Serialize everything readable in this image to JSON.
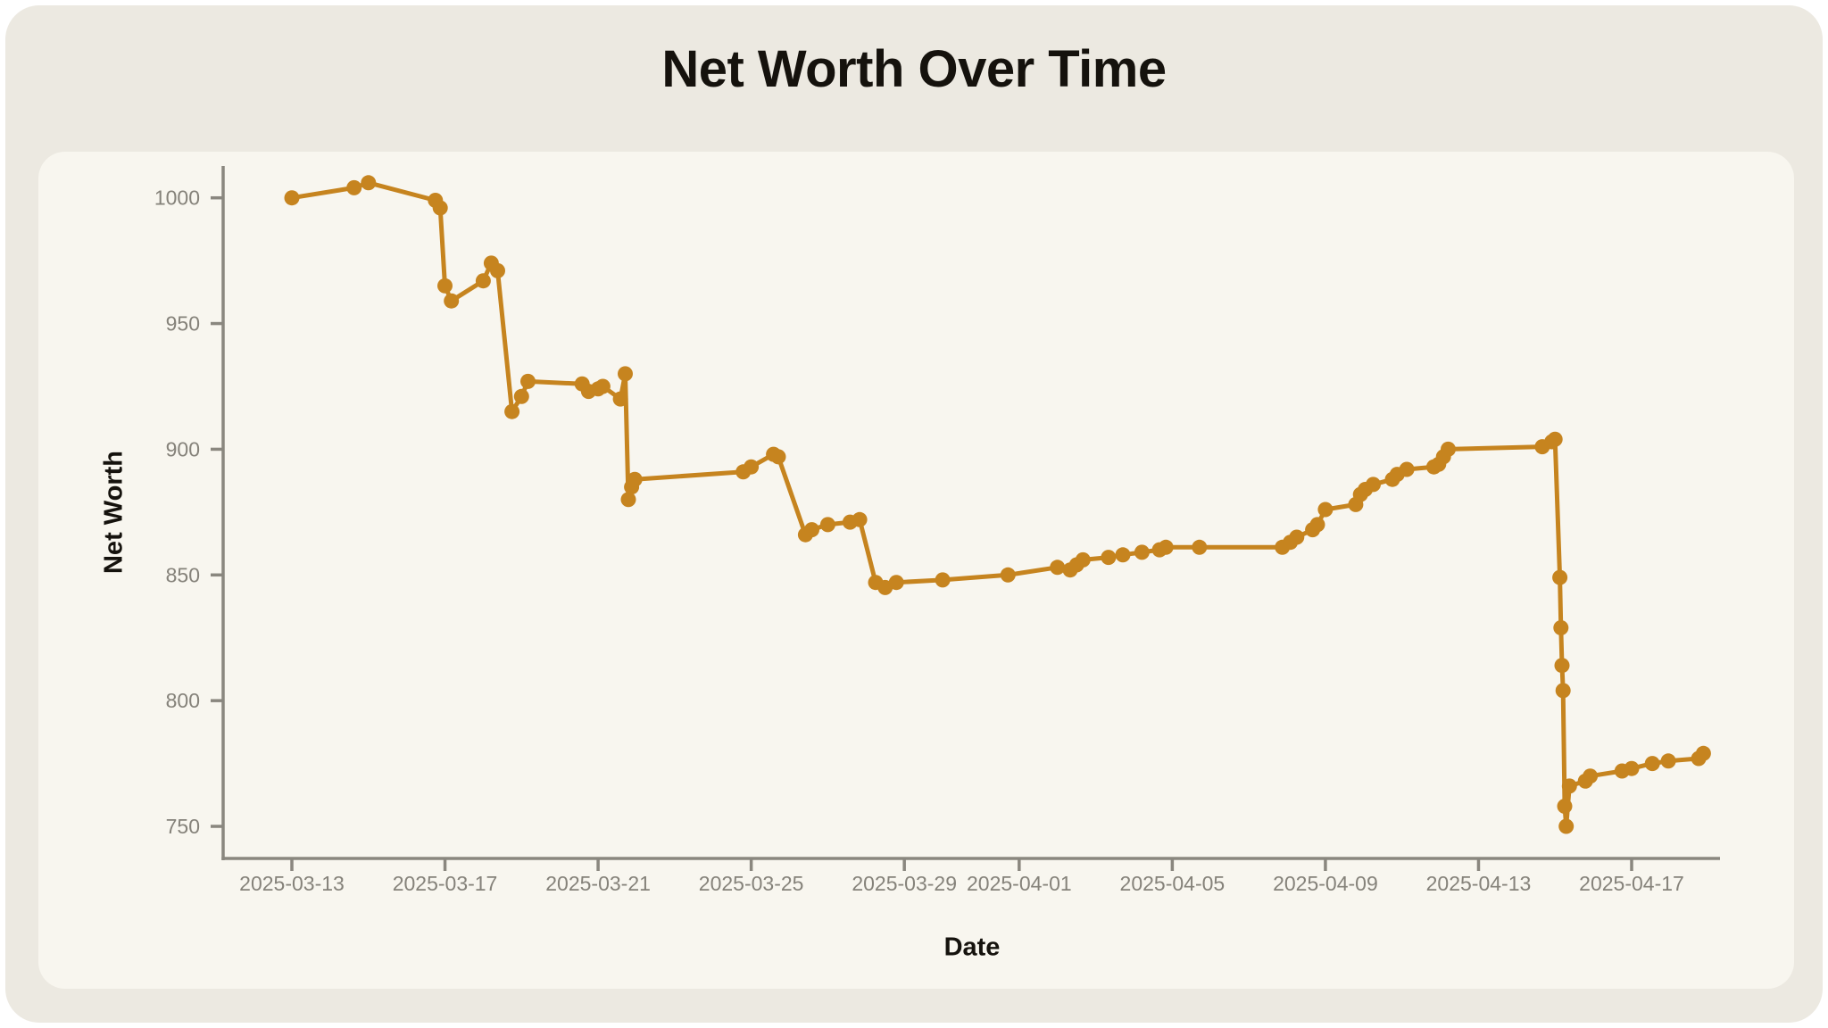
{
  "title": "Net Worth Over Time",
  "colors": {
    "page_bg": "#FFFFFF",
    "outer_bg": "#ECE9E1",
    "card_bg": "#F8F6EF",
    "line": "#C6841F",
    "axis": "#8A877F",
    "tick_label": "#85827A",
    "text": "#15120D"
  },
  "chart_data": {
    "type": "line",
    "title": "Net Worth Over Time",
    "xlabel": "Date",
    "ylabel": "Net Worth",
    "grid": false,
    "legend_position": "none",
    "marker": "circle",
    "ylim": [
      737,
      1013
    ],
    "xlim": [
      "2025-03-11 07:00",
      "2025-04-19 12:00"
    ],
    "y_ticks": [
      750,
      800,
      850,
      900,
      950,
      1000
    ],
    "x_tick_labels": [
      "2025-03-13",
      "2025-03-17",
      "2025-03-21",
      "2025-03-25",
      "2025-03-29",
      "2025-04-01",
      "2025-04-05",
      "2025-04-09",
      "2025-04-13",
      "2025-04-17"
    ],
    "series": [
      {
        "name": "net_worth",
        "color": "#C6841F",
        "points": [
          [
            "2025-03-13 00:00",
            1000
          ],
          [
            "2025-03-14 15:00",
            1004
          ],
          [
            "2025-03-15 00:00",
            1006
          ],
          [
            "2025-03-16 18:00",
            999
          ],
          [
            "2025-03-16 21:00",
            996
          ],
          [
            "2025-03-17 00:00",
            965
          ],
          [
            "2025-03-17 04:00",
            959
          ],
          [
            "2025-03-18 00:00",
            967
          ],
          [
            "2025-03-18 05:00",
            974
          ],
          [
            "2025-03-18 09:00",
            971
          ],
          [
            "2025-03-18 18:00",
            915
          ],
          [
            "2025-03-19 00:00",
            921
          ],
          [
            "2025-03-19 04:00",
            927
          ],
          [
            "2025-03-20 14:00",
            926
          ],
          [
            "2025-03-20 18:00",
            923
          ],
          [
            "2025-03-21 00:00",
            924
          ],
          [
            "2025-03-21 03:00",
            925
          ],
          [
            "2025-03-21 14:00",
            920
          ],
          [
            "2025-03-21 17:00",
            930
          ],
          [
            "2025-03-21 19:00",
            880
          ],
          [
            "2025-03-21 21:00",
            885
          ],
          [
            "2025-03-21 23:00",
            888
          ],
          [
            "2025-03-24 19:00",
            891
          ],
          [
            "2025-03-25 00:00",
            893
          ],
          [
            "2025-03-25 14:00",
            898
          ],
          [
            "2025-03-25 17:00",
            897
          ],
          [
            "2025-03-26 10:00",
            866
          ],
          [
            "2025-03-26 14:00",
            868
          ],
          [
            "2025-03-27 00:00",
            870
          ],
          [
            "2025-03-27 14:00",
            871
          ],
          [
            "2025-03-27 20:00",
            872
          ],
          [
            "2025-03-28 06:00",
            847
          ],
          [
            "2025-03-28 12:00",
            845
          ],
          [
            "2025-03-28 19:00",
            847
          ],
          [
            "2025-03-30 00:00",
            848
          ],
          [
            "2025-03-31 17:00",
            850
          ],
          [
            "2025-04-02 00:00",
            853
          ],
          [
            "2025-04-02 08:00",
            852
          ],
          [
            "2025-04-02 12:00",
            854
          ],
          [
            "2025-04-02 16:00",
            856
          ],
          [
            "2025-04-03 08:00",
            857
          ],
          [
            "2025-04-03 17:00",
            858
          ],
          [
            "2025-04-04 05:00",
            859
          ],
          [
            "2025-04-04 16:00",
            860
          ],
          [
            "2025-04-04 20:00",
            861
          ],
          [
            "2025-04-05 17:00",
            861
          ],
          [
            "2025-04-07 21:00",
            861
          ],
          [
            "2025-04-08 02:00",
            863
          ],
          [
            "2025-04-08 06:00",
            865
          ],
          [
            "2025-04-08 16:00",
            868
          ],
          [
            "2025-04-08 19:00",
            870
          ],
          [
            "2025-04-09 00:00",
            876
          ],
          [
            "2025-04-09 19:00",
            878
          ],
          [
            "2025-04-09 22:00",
            882
          ],
          [
            "2025-04-10 01:00",
            884
          ],
          [
            "2025-04-10 06:00",
            886
          ],
          [
            "2025-04-10 18:00",
            888
          ],
          [
            "2025-04-10 21:00",
            890
          ],
          [
            "2025-04-11 03:00",
            892
          ],
          [
            "2025-04-11 20:00",
            893
          ],
          [
            "2025-04-11 23:00",
            894
          ],
          [
            "2025-04-12 02:00",
            897
          ],
          [
            "2025-04-12 05:00",
            900
          ],
          [
            "2025-04-14 16:00",
            901
          ],
          [
            "2025-04-14 22:00",
            903
          ],
          [
            "2025-04-15 00:00",
            904
          ],
          [
            "2025-04-15 03:00",
            849
          ],
          [
            "2025-04-15 03:40",
            829
          ],
          [
            "2025-04-15 04:20",
            814
          ],
          [
            "2025-04-15 05:00",
            804
          ],
          [
            "2025-04-15 06:00",
            758
          ],
          [
            "2025-04-15 07:00",
            750
          ],
          [
            "2025-04-15 09:00",
            766
          ],
          [
            "2025-04-15 19:00",
            768
          ],
          [
            "2025-04-15 22:00",
            770
          ],
          [
            "2025-04-16 18:00",
            772
          ],
          [
            "2025-04-17 00:00",
            773
          ],
          [
            "2025-04-17 13:00",
            775
          ],
          [
            "2025-04-17 23:00",
            776
          ],
          [
            "2025-04-18 18:00",
            777
          ],
          [
            "2025-04-18 21:00",
            779
          ]
        ]
      }
    ]
  }
}
